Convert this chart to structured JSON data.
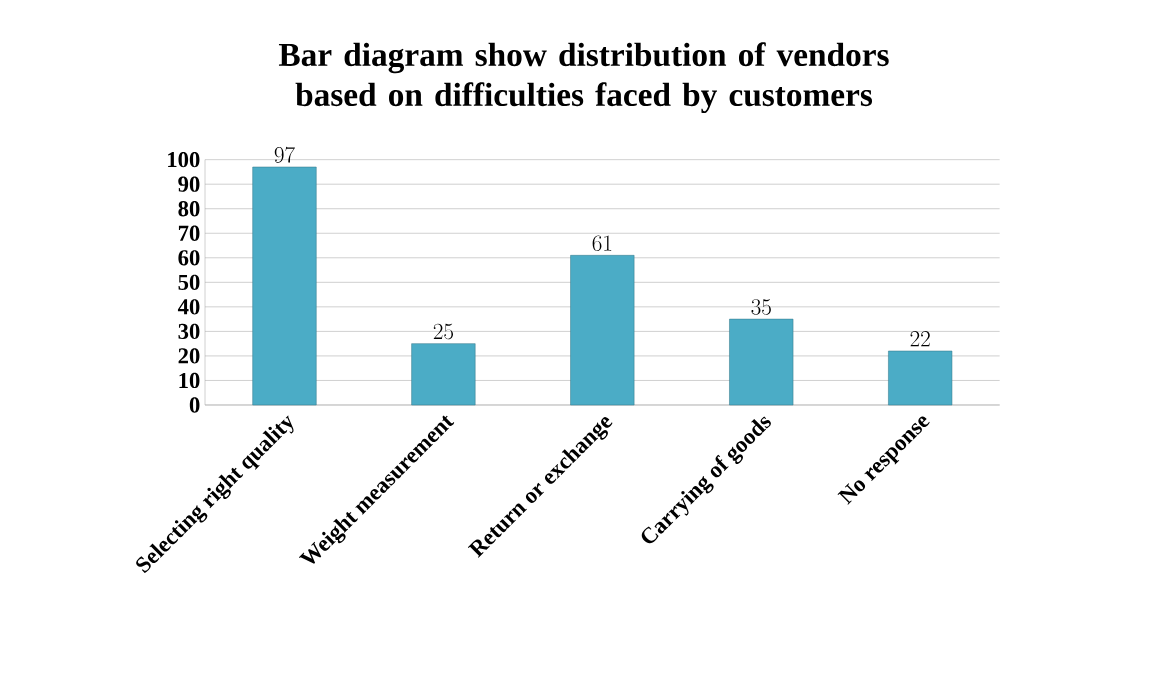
{
  "chart_data": {
    "type": "bar",
    "title": "Bar diagram show distribution of vendors based on difficulties faced by customers",
    "categories": [
      "Selecting right quality",
      "Weight measurement",
      "Return or exchange",
      "Carrying of goods",
      "No response"
    ],
    "values": [
      97,
      25,
      61,
      35,
      22
    ],
    "color": "#4bacc6",
    "ylim": [
      0,
      100
    ],
    "yticks": [
      0,
      10,
      20,
      30,
      40,
      50,
      60,
      70,
      80,
      90,
      100
    ],
    "grid": "y",
    "data_labels": true
  }
}
